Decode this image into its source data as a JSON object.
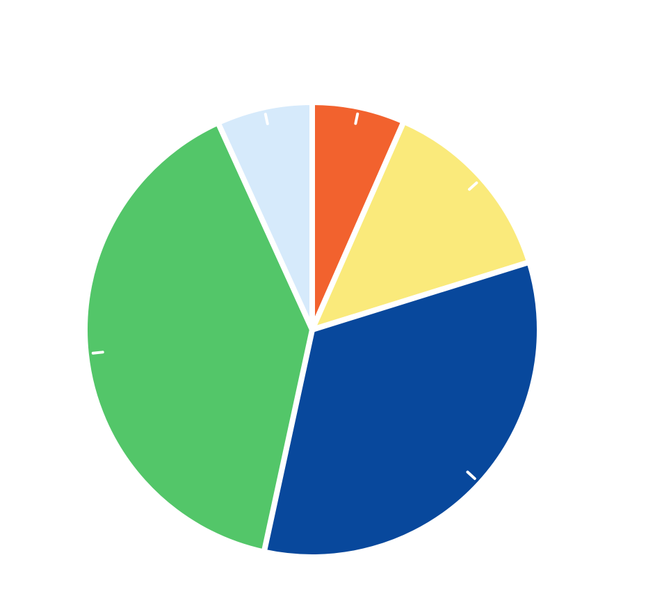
{
  "chart_data": {
    "type": "pie",
    "values": [
      6.6,
      13.6,
      33.2,
      39.8,
      6.8
    ],
    "colors": [
      "#f2622e",
      "#faea7b",
      "#08489c",
      "#53c669",
      "#d6eafb"
    ]
  }
}
